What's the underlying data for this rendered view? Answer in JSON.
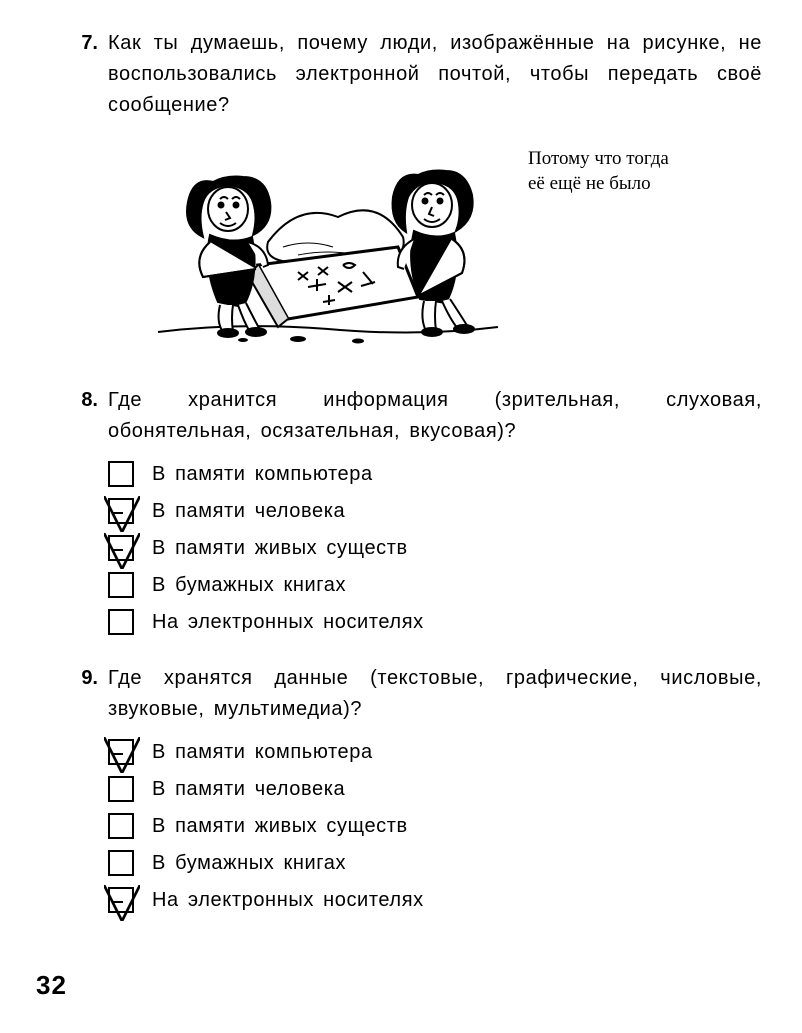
{
  "page_number": "32",
  "q7": {
    "number": "7.",
    "text": "Как ты думаешь, почему люди, изображённые на рисунке, не воспользовались электронной почтой, чтобы передать своё сообщение?",
    "answer_note": "Потому что тогда её ещё не было",
    "illustration_alt": "Два первобытных человека несут каменную плиту с высеченными знаками"
  },
  "q8": {
    "number": "8.",
    "text": "Где хранится информация (зрительная, слуховая, обонятельная, осязательная, вкусовая)?",
    "options": [
      {
        "label": "В памяти компьютера",
        "checked": false
      },
      {
        "label": "В памяти человека",
        "checked": true
      },
      {
        "label": "В памяти живых существ",
        "checked": true
      },
      {
        "label": "В бумажных книгах",
        "checked": false
      },
      {
        "label": "На электронных носителях",
        "checked": false
      }
    ]
  },
  "q9": {
    "number": "9.",
    "text": "Где хранятся данные (текстовые, графические, числовые, звуковые, мультимедиа)?",
    "options": [
      {
        "label": "В памяти компьютера",
        "checked": true
      },
      {
        "label": "В памяти человека",
        "checked": false
      },
      {
        "label": "В памяти живых существ",
        "checked": false
      },
      {
        "label": "В бумажных книгах",
        "checked": false
      },
      {
        "label": "На электронных носителях",
        "checked": true
      }
    ]
  }
}
